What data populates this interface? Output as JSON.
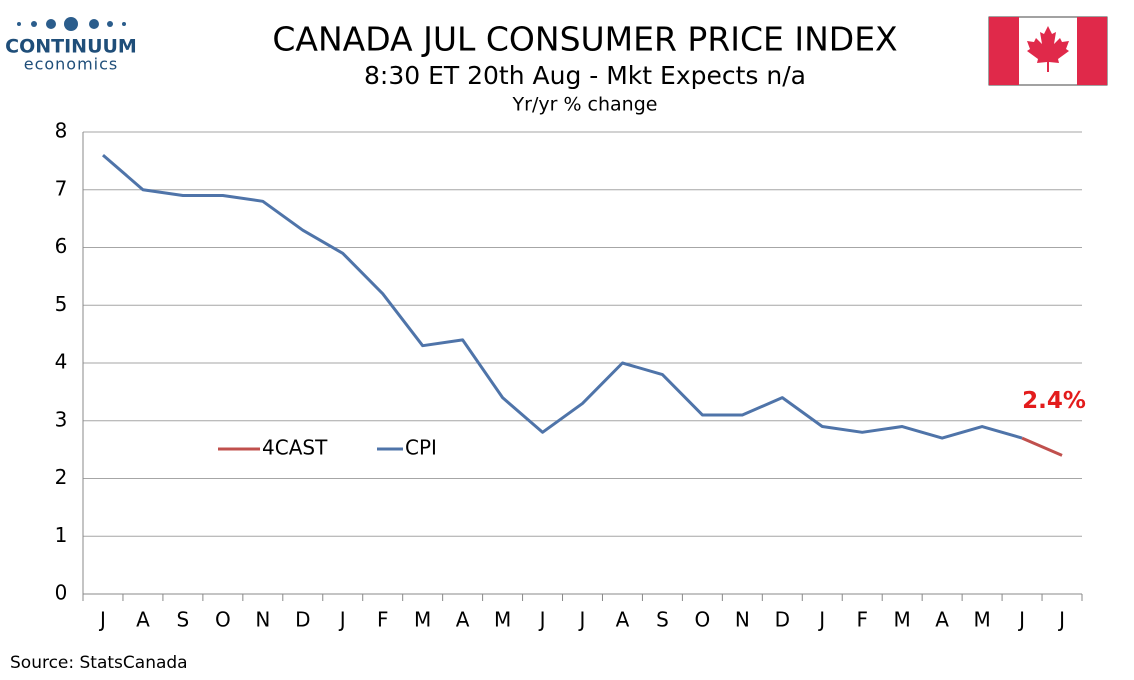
{
  "logo": {
    "name": "CONTINUUM",
    "tagline": "economics"
  },
  "chart_data": {
    "type": "line",
    "title": "CANADA JUL CONSUMER PRICE INDEX",
    "subtitle": "8:30 ET 20th Aug - Mkt Expects n/a",
    "y_label": "Yr/yr % change",
    "source": "Source: StatsCanada",
    "categories": [
      "J",
      "A",
      "S",
      "O",
      "N",
      "D",
      "J",
      "F",
      "M",
      "A",
      "M",
      "J",
      "J",
      "A",
      "S",
      "O",
      "N",
      "D",
      "J",
      "F",
      "M",
      "A",
      "M",
      "J",
      "J"
    ],
    "series": [
      {
        "name": "4CAST",
        "color": "#c0504d",
        "values": [
          null,
          null,
          null,
          null,
          null,
          null,
          null,
          null,
          null,
          null,
          null,
          null,
          null,
          null,
          null,
          null,
          null,
          null,
          null,
          null,
          null,
          null,
          null,
          2.7,
          2.4
        ],
        "value_labels": [
          null,
          null,
          null,
          null,
          null,
          null,
          null,
          null,
          null,
          null,
          null,
          null,
          null,
          null,
          null,
          null,
          null,
          null,
          null,
          null,
          null,
          null,
          null,
          null,
          "2.4%"
        ],
        "label_color": "#e31c1c"
      },
      {
        "name": "CPI",
        "color": "#4f74a9",
        "values": [
          7.6,
          7.0,
          6.9,
          6.9,
          6.8,
          6.3,
          5.9,
          5.2,
          4.3,
          4.4,
          3.4,
          2.8,
          3.3,
          4.0,
          3.8,
          3.1,
          3.1,
          3.4,
          2.9,
          2.8,
          2.9,
          2.7,
          2.9,
          2.7,
          null
        ]
      }
    ],
    "ylim": [
      0,
      8
    ],
    "yticks": [
      0,
      1,
      2,
      3,
      4,
      5,
      6,
      7,
      8
    ],
    "grid": true,
    "legend": "inside-left"
  }
}
